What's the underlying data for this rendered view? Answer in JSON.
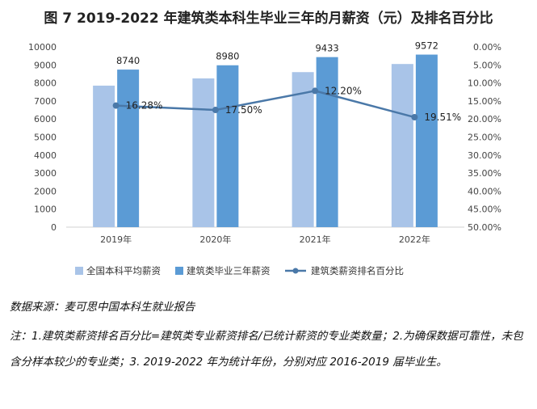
{
  "title": "图 7 2019-2022 年建筑类本科生毕业三年的月薪资（元）及排名百分比",
  "source": "数据来源：麦可思中国本科生就业报告",
  "remark": "注：1.建筑类薪资排名百分比=建筑类专业薪资排名/已统计薪资的专业类数量；2.为确保数据可靠性，未包含分样本较少的专业类；3. 2019-2022 年为统计年份，分别对应 2016-2019 届毕业生。",
  "colors": {
    "national": "#a9c4e8",
    "construction": "#5b9bd5",
    "rank_line": "#4a78a8"
  },
  "chart_data": {
    "type": "bar",
    "categories": [
      "2019年",
      "2020年",
      "2021年",
      "2022年"
    ],
    "series": [
      {
        "name": "全国本科平均薪资",
        "values": [
          7850,
          8250,
          8600,
          9050
        ],
        "axis": "left",
        "labels": [
          "",
          "",
          "",
          ""
        ]
      },
      {
        "name": "建筑类毕业三年薪资",
        "values": [
          8740,
          8980,
          9433,
          9572
        ],
        "axis": "left",
        "labels": [
          "8740",
          "8980",
          "9433",
          "9572"
        ]
      },
      {
        "name": "建筑类薪资排名百分比",
        "type": "line",
        "values": [
          16.28,
          17.5,
          12.2,
          19.51
        ],
        "axis": "right",
        "labels": [
          "16.28%",
          "17.50%",
          "12.20%",
          "19.51%"
        ]
      }
    ],
    "ylim": [
      0,
      10000
    ],
    "yticks": [
      "0",
      "1000",
      "2000",
      "3000",
      "4000",
      "5000",
      "6000",
      "7000",
      "8000",
      "9000",
      "10000"
    ],
    "y2lim": [
      0,
      50
    ],
    "y2_reversed": true,
    "y2ticks": [
      "0.00%",
      "5.00%",
      "10.00%",
      "15.00%",
      "20.00%",
      "25.00%",
      "30.00%",
      "35.00%",
      "40.00%",
      "45.00%",
      "50.00%"
    ],
    "grid": false,
    "legend": "bottom"
  }
}
